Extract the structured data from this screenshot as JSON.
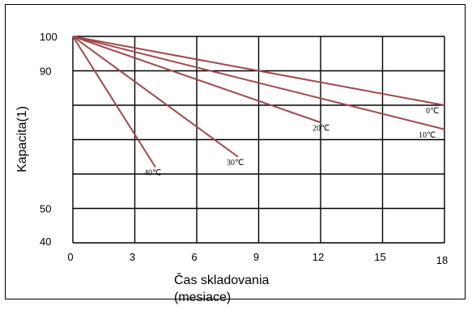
{
  "chart_data": {
    "type": "line",
    "title": "",
    "xlabel_line1": "Čas skladovania",
    "xlabel_line2": "(mesiace)",
    "ylabel": "Kapacita(1)",
    "xlim": [
      0,
      18
    ],
    "ylim": [
      40,
      100
    ],
    "x_ticks": [
      0,
      3,
      6,
      9,
      12,
      15,
      18
    ],
    "x_tick_labels": [
      "0",
      "3",
      "6",
      "9",
      "12",
      "15",
      "18"
    ],
    "y_ticks": [
      40,
      50,
      90,
      100
    ],
    "y_tick_labels": [
      "40",
      "50",
      "90",
      "100"
    ],
    "grid": true,
    "gridlines_y": [
      40,
      50,
      60,
      70,
      80,
      90,
      100
    ],
    "legend": "none (inline labels at line ends)",
    "line_color": "#a04848",
    "series": [
      {
        "name": "0℃",
        "x": [
          0,
          18
        ],
        "y": [
          100,
          80
        ]
      },
      {
        "name": "10℃",
        "x": [
          0,
          18
        ],
        "y": [
          100,
          73
        ]
      },
      {
        "name": "20℃",
        "x": [
          0,
          12
        ],
        "y": [
          100,
          75
        ]
      },
      {
        "name": "30℃",
        "x": [
          0,
          8
        ],
        "y": [
          100,
          65
        ]
      },
      {
        "name": "40℃",
        "x": [
          0,
          4
        ],
        "y": [
          100,
          62
        ]
      }
    ]
  }
}
